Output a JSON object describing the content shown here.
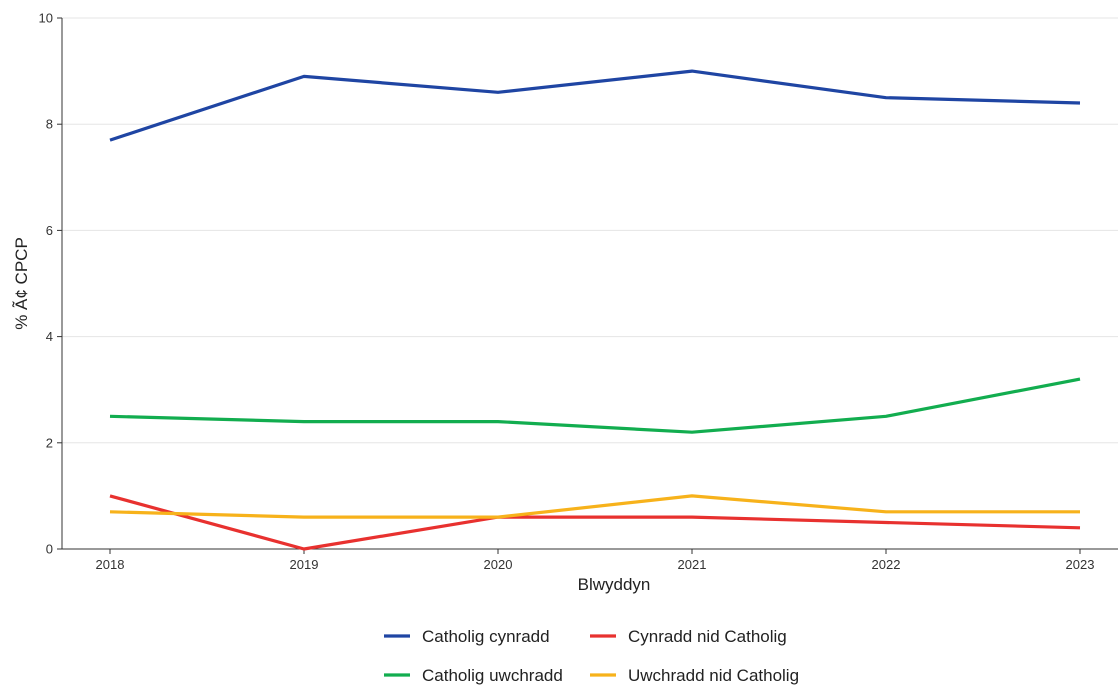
{
  "chart_data": {
    "type": "line",
    "title": "",
    "xlabel": "Blwyddyn",
    "ylabel": "% Ã¢ CPCP",
    "x": [
      "2018",
      "2019",
      "2020",
      "2021",
      "2022",
      "2023"
    ],
    "ylim": [
      0,
      10
    ],
    "yticks": [
      0,
      2,
      4,
      6,
      8,
      10
    ],
    "grid": true,
    "legend_position": "bottom",
    "series": [
      {
        "name": "Catholig cynradd",
        "color": "#1f45a3",
        "values": [
          7.7,
          8.9,
          8.6,
          9.0,
          8.5,
          8.4
        ]
      },
      {
        "name": "Cynradd nid Catholig",
        "color": "#e8312f",
        "values": [
          1.0,
          0.0,
          0.6,
          0.6,
          0.5,
          0.4
        ]
      },
      {
        "name": "Catholig uwchradd",
        "color": "#12ad4f",
        "values": [
          2.5,
          2.4,
          2.4,
          2.2,
          2.5,
          3.2
        ]
      },
      {
        "name": "Uwchradd nid Catholig",
        "color": "#f7b21b",
        "values": [
          0.7,
          0.6,
          0.6,
          1.0,
          0.7,
          0.7
        ]
      }
    ]
  }
}
